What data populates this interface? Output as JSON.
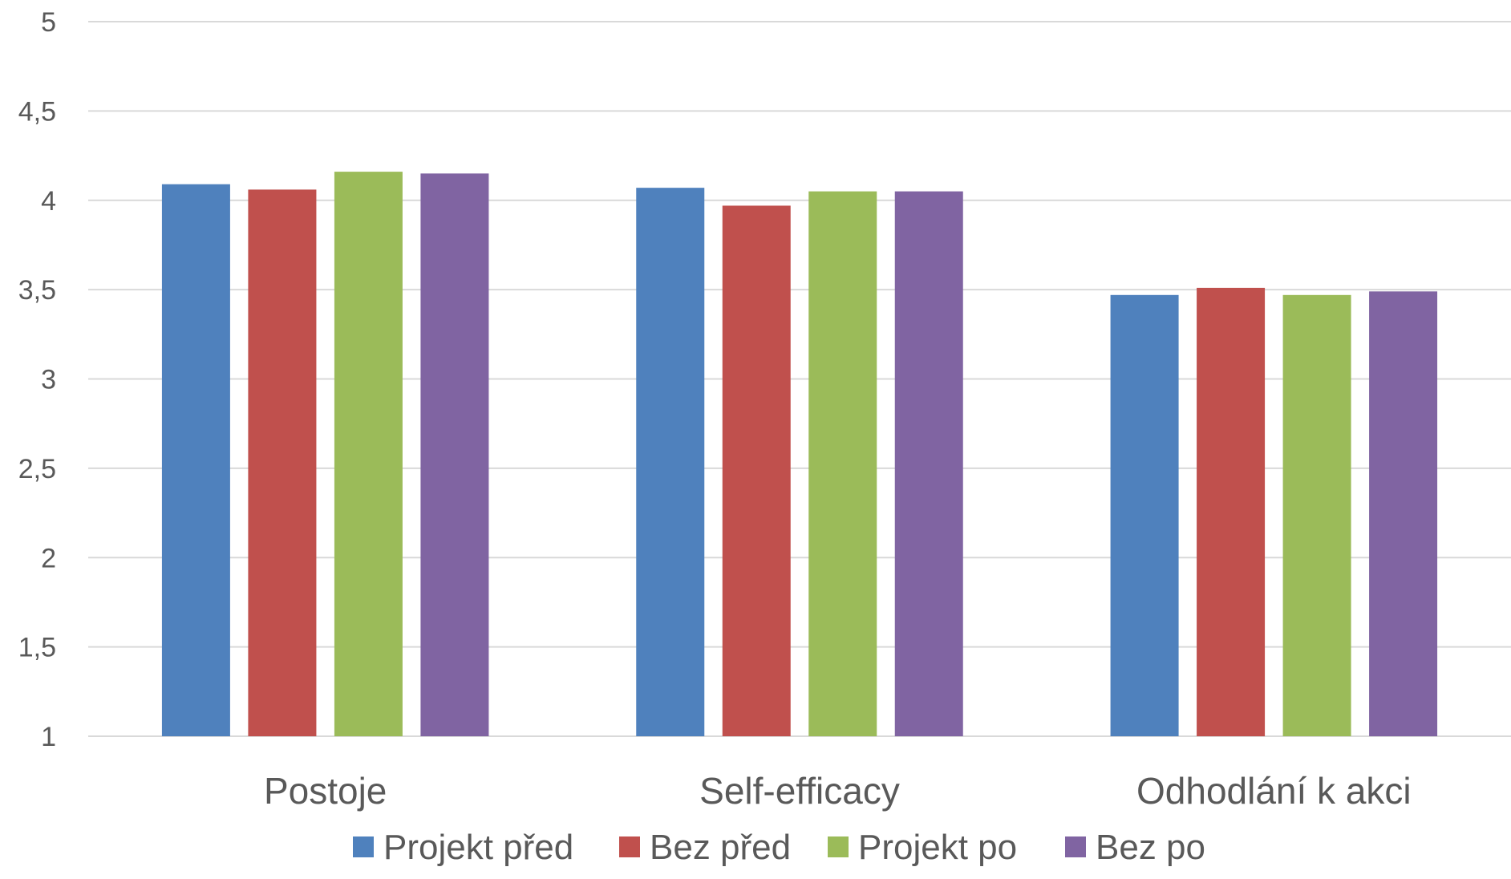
{
  "chart_data": {
    "type": "bar",
    "title": "",
    "xlabel": "",
    "ylabel": "",
    "ylim": [
      1,
      5
    ],
    "yticks": [
      "1",
      "1,5",
      "2",
      "2,5",
      "3",
      "3,5",
      "4",
      "4,5",
      "5"
    ],
    "ytick_values": [
      1,
      1.5,
      2,
      2.5,
      3,
      3.5,
      4,
      4.5,
      5
    ],
    "grid": true,
    "legend_position": "bottom",
    "categories": [
      "Postoje",
      "Self-efficacy",
      "Odhodlání k akci"
    ],
    "series": [
      {
        "name": "Projekt před",
        "color": "#4f81bd",
        "values": [
          4.09,
          4.07,
          3.47
        ]
      },
      {
        "name": "Bez před",
        "color": "#c0504d",
        "values": [
          4.06,
          3.97,
          3.51
        ]
      },
      {
        "name": "Projekt po",
        "color": "#9bbb59",
        "values": [
          4.16,
          4.05,
          3.47
        ]
      },
      {
        "name": "Bez po",
        "color": "#8064a2",
        "values": [
          4.15,
          4.05,
          3.49
        ]
      }
    ]
  }
}
